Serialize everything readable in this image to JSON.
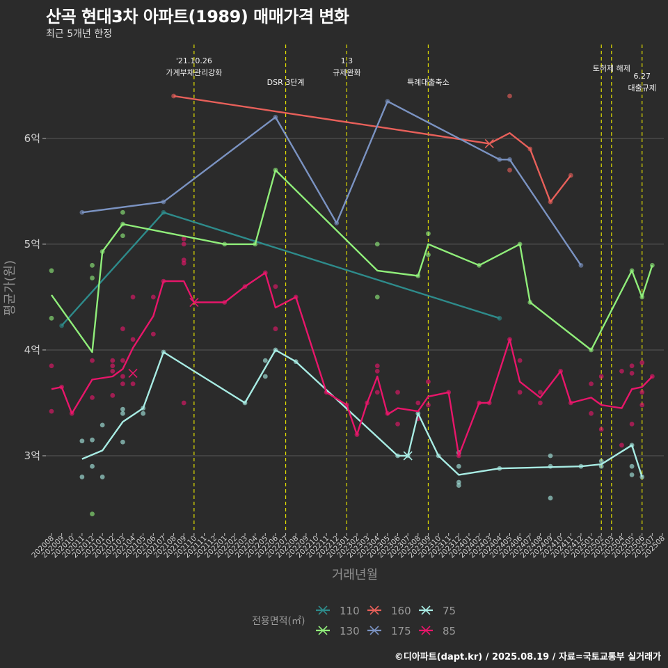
{
  "title": "산곡 현대3차 아파트(1989) 매매가격 변화",
  "subtitle": "최근 5개년 한정",
  "credit": "©디아파트(dapt.kr) / 2025.08.19 / 자료=국토교통부 실거래가",
  "chart_data": {
    "type": "line",
    "xlabel": "거래년월",
    "ylabel": "평균가(원)",
    "ylim": [
      2.27,
      6.9
    ],
    "y_ticks": [
      {
        "value": 3,
        "label": "3억"
      },
      {
        "value": 4,
        "label": "4억"
      },
      {
        "value": 5,
        "label": "5억"
      },
      {
        "value": 6,
        "label": "6억"
      }
    ],
    "x_labels": [
      "202008",
      "202009",
      "202010",
      "202011",
      "202012",
      "202101",
      "202102",
      "202103",
      "202104",
      "202105",
      "202106",
      "202107",
      "202108",
      "202109",
      "202110",
      "202111",
      "202112",
      "202201",
      "202202",
      "202203",
      "202204",
      "202205",
      "202206",
      "202207",
      "202208",
      "202209",
      "202210",
      "202211",
      "202212",
      "202301",
      "202302",
      "202303",
      "202304",
      "202305",
      "202306",
      "202307",
      "202308",
      "202309",
      "202310",
      "202311",
      "202312",
      "202401",
      "202402",
      "202403",
      "202404",
      "202405",
      "202406",
      "202407",
      "202408",
      "202409",
      "202410",
      "202411",
      "202412",
      "202501",
      "202502",
      "202503",
      "202504",
      "202505",
      "202506",
      "202507",
      "202508"
    ],
    "grid": true,
    "legend_title": "전용면적(㎡)",
    "legend_placement": "bottom",
    "annotations": [
      {
        "x": 14,
        "lines": [
          "'21.10.26",
          "가계부채관리강화"
        ]
      },
      {
        "x": 23,
        "lines": [
          "DSR 3단계"
        ]
      },
      {
        "x": 29,
        "lines": [
          "1.3",
          "규제완화"
        ]
      },
      {
        "x": 37,
        "lines": [
          "특례대출축소"
        ]
      },
      {
        "x": 54,
        "lines": []
      },
      {
        "x": 55,
        "lines": [
          "토허제 해제"
        ]
      },
      {
        "x": 58,
        "lines": [
          "6.27",
          "대출규제"
        ]
      }
    ],
    "series": [
      {
        "name": "110",
        "color": "#2e8b8b",
        "line": [
          [
            1,
            4.23
          ],
          [
            11,
            5.3
          ],
          [
            44,
            4.3
          ]
        ],
        "points": [
          [
            1,
            4.23
          ],
          [
            11,
            5.3
          ],
          [
            44,
            4.3
          ]
        ],
        "crosses": []
      },
      {
        "name": "130",
        "color": "#90ee7a",
        "line": [
          [
            0,
            4.52
          ],
          [
            4,
            3.98
          ],
          [
            5,
            4.93
          ],
          [
            7,
            5.19
          ],
          [
            17,
            5.0
          ],
          [
            20,
            5.0
          ],
          [
            22,
            5.7
          ],
          [
            32,
            4.75
          ],
          [
            36,
            4.7
          ],
          [
            37,
            5.0
          ],
          [
            42,
            4.8
          ],
          [
            46,
            5.0
          ],
          [
            47,
            4.45
          ],
          [
            53,
            4.0
          ],
          [
            57,
            4.75
          ],
          [
            58,
            4.5
          ],
          [
            59,
            4.8
          ]
        ],
        "points": [
          [
            0,
            4.75
          ],
          [
            0,
            4.3
          ],
          [
            4,
            4.8
          ],
          [
            4,
            4.68
          ],
          [
            4,
            2.45
          ],
          [
            5,
            4.93
          ],
          [
            7,
            5.3
          ],
          [
            7,
            5.08
          ],
          [
            7,
            5.19
          ],
          [
            17,
            5.0
          ],
          [
            20,
            5.0
          ],
          [
            22,
            5.7
          ],
          [
            32,
            5.0
          ],
          [
            32,
            4.5
          ],
          [
            36,
            4.7
          ],
          [
            37,
            5.1
          ],
          [
            37,
            4.9
          ],
          [
            42,
            4.8
          ],
          [
            46,
            5.0
          ],
          [
            47,
            4.45
          ],
          [
            53,
            4.0
          ],
          [
            57,
            4.75
          ],
          [
            58,
            4.5
          ],
          [
            59,
            4.8
          ]
        ],
        "crosses": []
      },
      {
        "name": "160",
        "color": "#e8605a",
        "line": [
          [
            12,
            6.4
          ],
          [
            43,
            5.95
          ],
          [
            45,
            6.05
          ],
          [
            47,
            5.9
          ],
          [
            49,
            5.4
          ],
          [
            51,
            5.65
          ]
        ],
        "points": [
          [
            12,
            6.4
          ],
          [
            45,
            6.4
          ],
          [
            45,
            5.7
          ],
          [
            47,
            5.9
          ],
          [
            49,
            5.4
          ],
          [
            51,
            5.65
          ]
        ],
        "crosses": [
          [
            43,
            5.95
          ]
        ]
      },
      {
        "name": "175",
        "color": "#7b93c2",
        "line": [
          [
            3,
            5.3
          ],
          [
            11,
            5.4
          ],
          [
            22,
            6.2
          ],
          [
            28,
            5.2
          ],
          [
            33,
            6.35
          ],
          [
            44,
            5.8
          ],
          [
            45,
            5.8
          ],
          [
            52,
            4.8
          ]
        ],
        "points": [
          [
            3,
            5.3
          ],
          [
            11,
            5.4
          ],
          [
            22,
            6.2
          ],
          [
            28,
            5.2
          ],
          [
            33,
            6.35
          ],
          [
            44,
            5.8
          ],
          [
            45,
            5.8
          ],
          [
            52,
            4.8
          ]
        ],
        "crosses": []
      },
      {
        "name": "75",
        "color": "#a8ece4",
        "line": [
          [
            3,
            2.97
          ],
          [
            5,
            3.05
          ],
          [
            7,
            3.32
          ],
          [
            9,
            3.45
          ],
          [
            11,
            3.98
          ],
          [
            19,
            3.5
          ],
          [
            22,
            4.0
          ],
          [
            24,
            3.89
          ],
          [
            34,
            3.0
          ],
          [
            35,
            3.0
          ],
          [
            36,
            3.4
          ],
          [
            38,
            3.0
          ],
          [
            40,
            2.82
          ],
          [
            44,
            2.88
          ],
          [
            52,
            2.9
          ],
          [
            54,
            2.92
          ],
          [
            57,
            3.1
          ],
          [
            58,
            2.8
          ]
        ],
        "points": [
          [
            3,
            3.14
          ],
          [
            3,
            2.8
          ],
          [
            4,
            3.15
          ],
          [
            4,
            2.9
          ],
          [
            5,
            3.29
          ],
          [
            5,
            2.8
          ],
          [
            7,
            3.44
          ],
          [
            7,
            3.4
          ],
          [
            7,
            3.13
          ],
          [
            9,
            3.45
          ],
          [
            9,
            3.4
          ],
          [
            11,
            3.98
          ],
          [
            19,
            3.5
          ],
          [
            21,
            3.9
          ],
          [
            21,
            3.75
          ],
          [
            22,
            4.0
          ],
          [
            24,
            3.89
          ],
          [
            34,
            3.0
          ],
          [
            35,
            3.0
          ],
          [
            36,
            3.4
          ],
          [
            38,
            3.0
          ],
          [
            40,
            3.03
          ],
          [
            40,
            2.9
          ],
          [
            40,
            2.75
          ],
          [
            40,
            2.72
          ],
          [
            44,
            2.88
          ],
          [
            49,
            2.6
          ],
          [
            49,
            3.0
          ],
          [
            49,
            2.9
          ],
          [
            52,
            2.9
          ],
          [
            54,
            2.95
          ],
          [
            54,
            2.9
          ],
          [
            57,
            3.1
          ],
          [
            57,
            2.9
          ],
          [
            57,
            2.82
          ],
          [
            58,
            2.8
          ]
        ],
        "crosses": [
          [
            35,
            3.0
          ]
        ]
      },
      {
        "name": "85",
        "color": "#e8166a",
        "line": [
          [
            0,
            3.63
          ],
          [
            1,
            3.65
          ],
          [
            2,
            3.4
          ],
          [
            4,
            3.72
          ],
          [
            6,
            3.75
          ],
          [
            7,
            3.82
          ],
          [
            8,
            4.02
          ],
          [
            10,
            4.32
          ],
          [
            11,
            4.65
          ],
          [
            13,
            4.65
          ],
          [
            14,
            4.45
          ],
          [
            17,
            4.45
          ],
          [
            19,
            4.6
          ],
          [
            21,
            4.73
          ],
          [
            22,
            4.4
          ],
          [
            24,
            4.5
          ],
          [
            27,
            3.6
          ],
          [
            29,
            3.48
          ],
          [
            30,
            3.2
          ],
          [
            31,
            3.5
          ],
          [
            32,
            3.75
          ],
          [
            33,
            3.39
          ],
          [
            34,
            3.45
          ],
          [
            36,
            3.42
          ],
          [
            37,
            3.56
          ],
          [
            39,
            3.6
          ],
          [
            40,
            3.0
          ],
          [
            42,
            3.5
          ],
          [
            43,
            3.5
          ],
          [
            45,
            4.1
          ],
          [
            46,
            3.7
          ],
          [
            48,
            3.55
          ],
          [
            50,
            3.8
          ],
          [
            51,
            3.5
          ],
          [
            53,
            3.55
          ],
          [
            54,
            3.48
          ],
          [
            56,
            3.45
          ],
          [
            57,
            3.63
          ],
          [
            58,
            3.65
          ],
          [
            59,
            3.75
          ]
        ],
        "points": [
          [
            0,
            3.85
          ],
          [
            0,
            3.42
          ],
          [
            1,
            3.65
          ],
          [
            2,
            3.4
          ],
          [
            4,
            3.9
          ],
          [
            4,
            3.55
          ],
          [
            6,
            3.9
          ],
          [
            6,
            3.85
          ],
          [
            6,
            3.8
          ],
          [
            6,
            3.57
          ],
          [
            7,
            4.2
          ],
          [
            7,
            3.9
          ],
          [
            7,
            3.75
          ],
          [
            7,
            3.68
          ],
          [
            8,
            4.5
          ],
          [
            8,
            4.1
          ],
          [
            8,
            3.68
          ],
          [
            10,
            4.5
          ],
          [
            10,
            4.15
          ],
          [
            11,
            4.65
          ],
          [
            13,
            5.05
          ],
          [
            13,
            5.0
          ],
          [
            13,
            4.85
          ],
          [
            13,
            4.82
          ],
          [
            13,
            3.5
          ],
          [
            17,
            4.45
          ],
          [
            19,
            4.6
          ],
          [
            21,
            4.73
          ],
          [
            22,
            4.6
          ],
          [
            22,
            4.2
          ],
          [
            24,
            4.5
          ],
          [
            27,
            3.6
          ],
          [
            29,
            3.48
          ],
          [
            30,
            3.2
          ],
          [
            31,
            3.5
          ],
          [
            32,
            3.85
          ],
          [
            32,
            3.8
          ],
          [
            32,
            3.6
          ],
          [
            33,
            3.4
          ],
          [
            34,
            3.6
          ],
          [
            34,
            3.3
          ],
          [
            36,
            3.5
          ],
          [
            36,
            3.35
          ],
          [
            37,
            3.7
          ],
          [
            37,
            3.48
          ],
          [
            39,
            3.6
          ],
          [
            40,
            3.0
          ],
          [
            42,
            3.5
          ],
          [
            43,
            3.5
          ],
          [
            45,
            4.1
          ],
          [
            46,
            3.9
          ],
          [
            46,
            3.6
          ],
          [
            48,
            3.6
          ],
          [
            48,
            3.5
          ],
          [
            50,
            3.8
          ],
          [
            51,
            3.5
          ],
          [
            53,
            3.68
          ],
          [
            53,
            3.4
          ],
          [
            54,
            3.75
          ],
          [
            54,
            3.25
          ],
          [
            56,
            3.8
          ],
          [
            56,
            3.1
          ],
          [
            57,
            3.85
          ],
          [
            57,
            3.78
          ],
          [
            57,
            3.3
          ],
          [
            58,
            3.88
          ],
          [
            58,
            3.6
          ],
          [
            58,
            3.48
          ],
          [
            59,
            3.75
          ]
        ],
        "crosses": [
          [
            8,
            3.78
          ],
          [
            14,
            4.45
          ]
        ]
      }
    ]
  }
}
